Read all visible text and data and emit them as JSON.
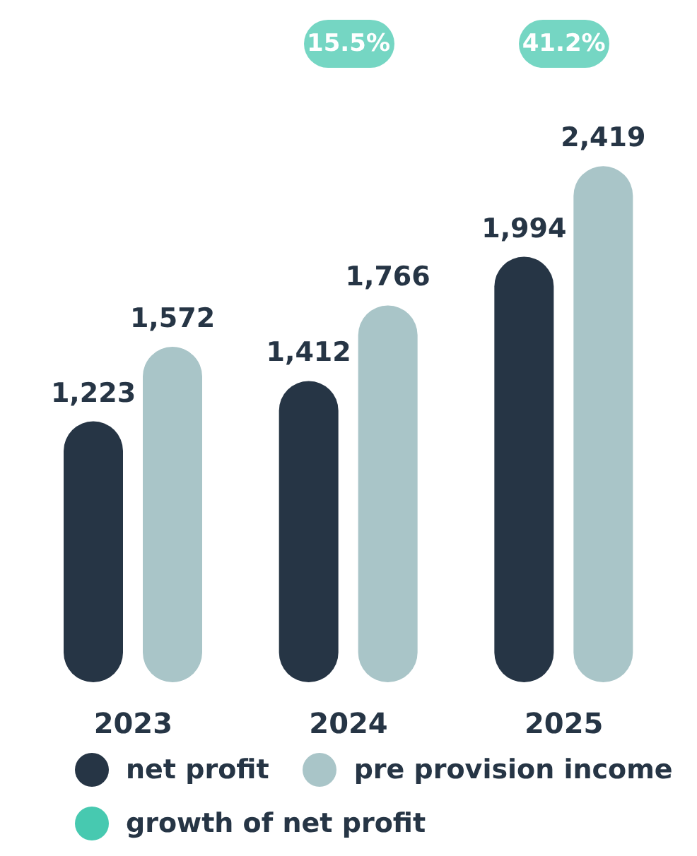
{
  "chart_data": {
    "type": "bar",
    "categories": [
      "2023",
      "2024",
      "2025"
    ],
    "series": [
      {
        "name": "net profit",
        "color": "#263545",
        "values": [
          1223,
          1412,
          1994
        ],
        "value_labels": [
          "1,223",
          "1,412",
          "1,994"
        ]
      },
      {
        "name": "pre provision income",
        "color": "#a9c5c8",
        "values": [
          1572,
          1766,
          2419
        ],
        "value_labels": [
          "1,572",
          "1,766",
          "2,419"
        ]
      },
      {
        "name": "growth of net profit",
        "type": "scatter",
        "color": "#47c9b0",
        "values": [
          null,
          null,
          null
        ]
      }
    ],
    "annotations": [
      "15.5%",
      "41.2%"
    ],
    "legend": "bottom",
    "grid": false
  }
}
